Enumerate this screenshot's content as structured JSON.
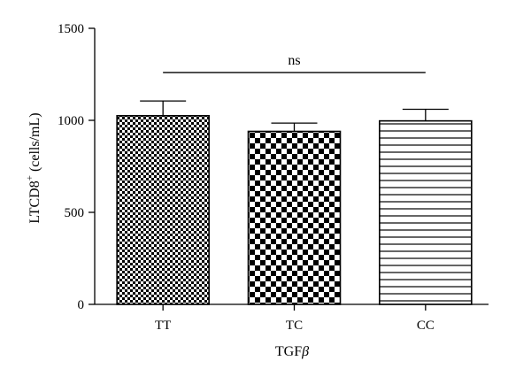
{
  "chart_data": {
    "type": "bar",
    "categories": [
      "TT",
      "TC",
      "CC"
    ],
    "values": [
      1025,
      940,
      997
    ],
    "errors": [
      80,
      45,
      63
    ],
    "patterns": [
      "fine-checker",
      "coarse-checker",
      "horizontal-lines"
    ],
    "xlabel": "TGF",
    "xlabel_symbol": "β",
    "ylabel_prefix": "LTCD8",
    "ylabel_sup": "+",
    "ylabel_suffix": " (cells/mL)",
    "ylim": [
      0,
      1500
    ],
    "yticks": [
      0,
      500,
      1000,
      1500
    ],
    "significance": {
      "label": "ns",
      "from": "TT",
      "to": "CC",
      "y": 1260
    },
    "grid": false,
    "legend": "none"
  }
}
